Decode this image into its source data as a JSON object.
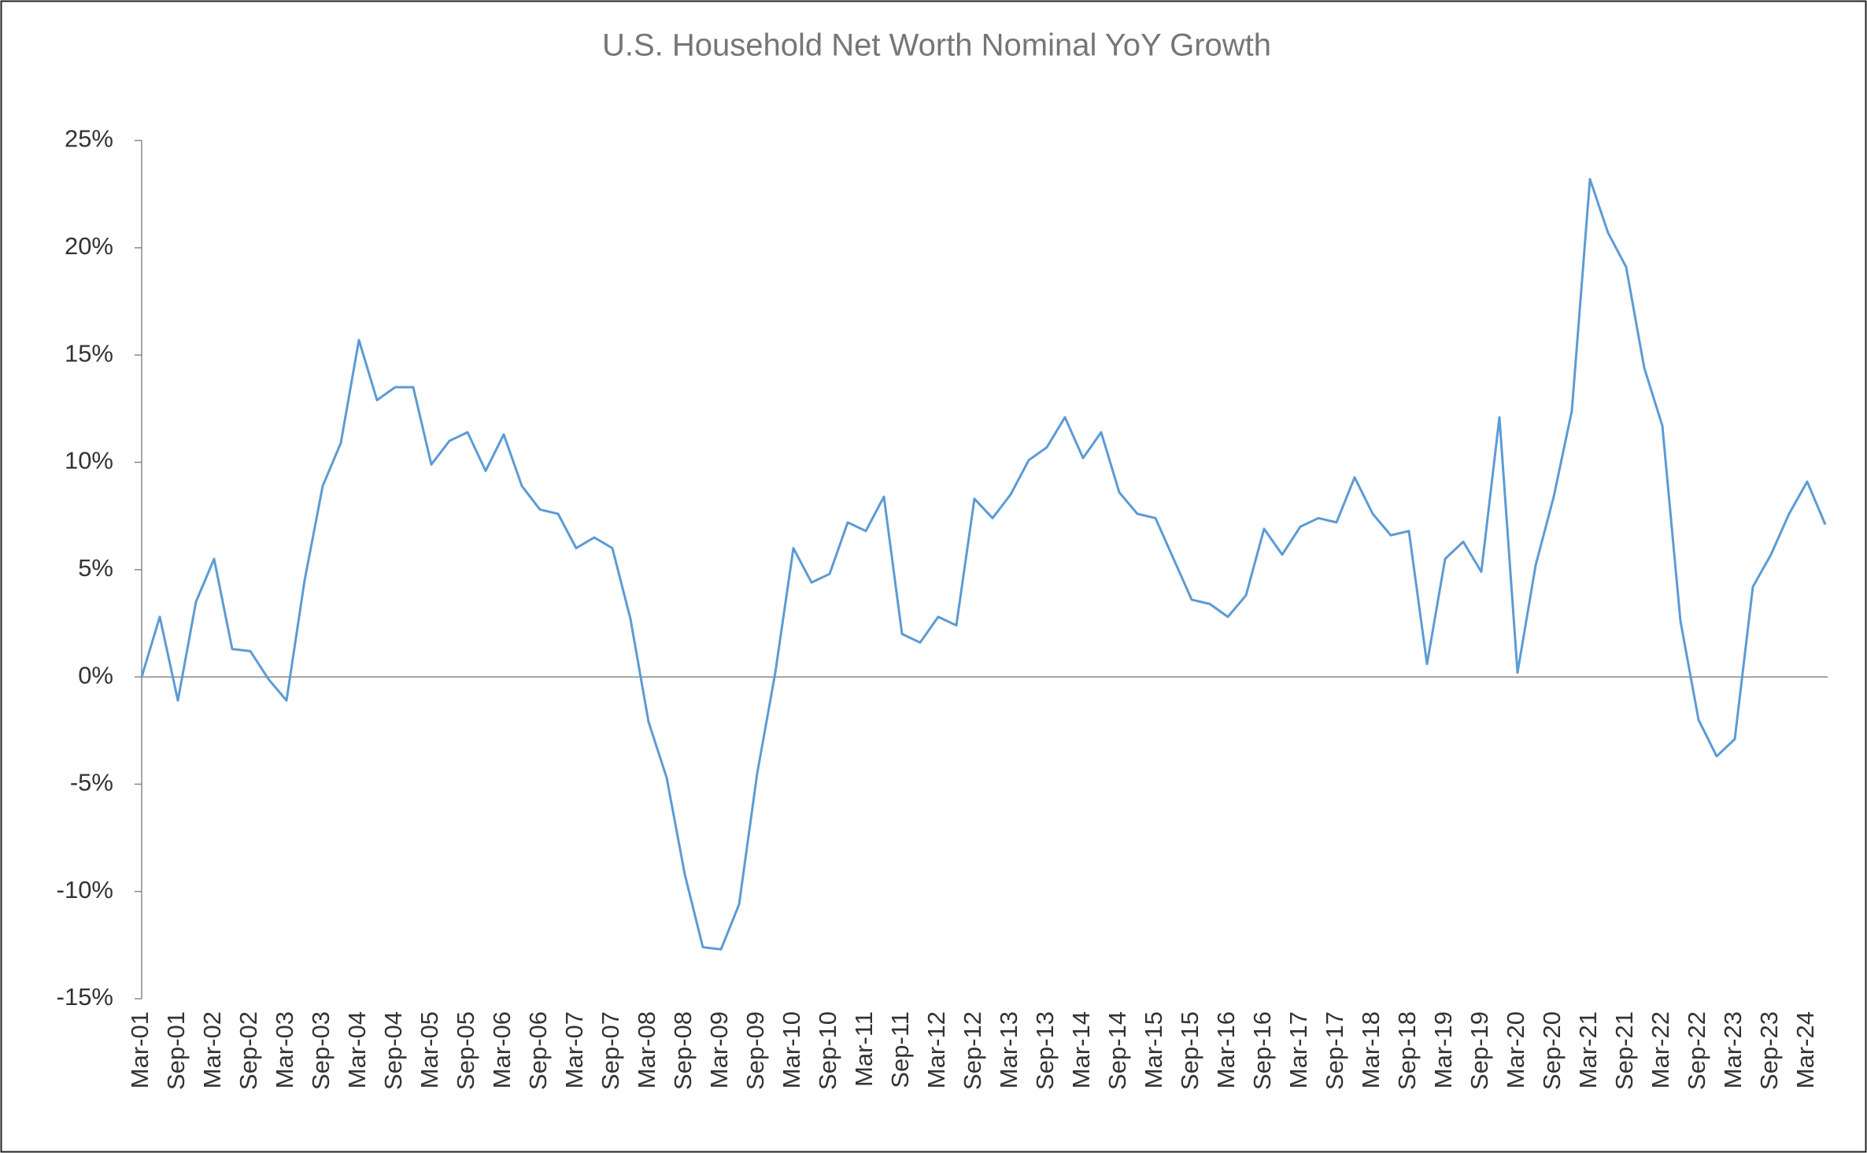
{
  "chart_data": {
    "type": "line",
    "title": "U.S. Household Net Worth Nominal YoY Growth",
    "categories": [
      "Mar-01",
      null,
      "Sep-01",
      null,
      "Mar-02",
      null,
      "Sep-02",
      null,
      "Mar-03",
      null,
      "Sep-03",
      null,
      "Mar-04",
      null,
      "Sep-04",
      null,
      "Mar-05",
      null,
      "Sep-05",
      null,
      "Mar-06",
      null,
      "Sep-06",
      null,
      "Mar-07",
      null,
      "Sep-07",
      null,
      "Mar-08",
      null,
      "Sep-08",
      null,
      "Mar-09",
      null,
      "Sep-09",
      null,
      "Mar-10",
      null,
      "Sep-10",
      null,
      "Mar-11",
      null,
      "Sep-11",
      null,
      "Mar-12",
      null,
      "Sep-12",
      null,
      "Mar-13",
      null,
      "Sep-13",
      null,
      "Mar-14",
      null,
      "Sep-14",
      null,
      "Mar-15",
      null,
      "Sep-15",
      null,
      "Mar-16",
      null,
      "Sep-16",
      null,
      "Mar-17",
      null,
      "Sep-17",
      null,
      "Mar-18",
      null,
      "Sep-18",
      null,
      "Mar-19",
      null,
      "Sep-19",
      null,
      "Mar-20",
      null,
      "Sep-20",
      null,
      "Mar-21",
      null,
      "Sep-21",
      null,
      "Mar-22",
      null,
      "Sep-22",
      null,
      "Mar-23",
      null,
      "Sep-23",
      null,
      "Mar-24",
      null
    ],
    "values": [
      0,
      2.8,
      -1.1,
      3.5,
      5.5,
      1.3,
      1.2,
      -0.1,
      -1.1,
      4.5,
      8.9,
      10.9,
      15.7,
      12.9,
      13.5,
      13.5,
      9.9,
      11.0,
      11.4,
      9.6,
      11.3,
      8.9,
      7.8,
      7.6,
      6.0,
      6.5,
      6.0,
      2.7,
      -2.1,
      -4.7,
      -9.2,
      -12.6,
      -12.7,
      -10.6,
      -4.5,
      0.2,
      6.0,
      4.4,
      4.8,
      7.2,
      6.8,
      8.4,
      2.0,
      1.6,
      2.8,
      2.4,
      8.3,
      7.4,
      8.5,
      10.1,
      10.7,
      12.1,
      10.2,
      11.4,
      8.6,
      7.6,
      7.4,
      5.5,
      3.6,
      3.4,
      2.8,
      3.8,
      6.9,
      5.7,
      7.0,
      7.4,
      7.2,
      9.3,
      7.6,
      6.6,
      6.8,
      0.6,
      5.5,
      6.3,
      4.9,
      12.1,
      0.2,
      5.2,
      8.4,
      12.4,
      23.2,
      20.7,
      19.1,
      14.4,
      11.7,
      2.6,
      -2.0,
      -3.7,
      -2.9,
      4.2,
      5.7,
      7.6,
      9.1,
      7.1
    ],
    "color": "#5b9bd5",
    "ylim": [
      -15,
      25
    ],
    "yticks": [
      {
        "value": -15,
        "label": "-15%"
      },
      {
        "value": -10,
        "label": "-10%"
      },
      {
        "value": -5,
        "label": "-5%"
      },
      {
        "value": 0,
        "label": "0%"
      },
      {
        "value": 5,
        "label": "5%"
      },
      {
        "value": 10,
        "label": "10%"
      },
      {
        "value": 15,
        "label": "15%"
      },
      {
        "value": 20,
        "label": "20%"
      },
      {
        "value": 25,
        "label": "25%"
      }
    ],
    "grid": false
  }
}
